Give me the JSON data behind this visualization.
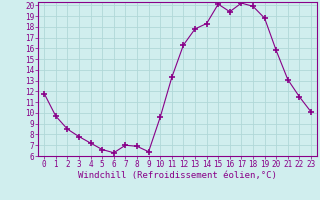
{
  "x": [
    0,
    1,
    2,
    3,
    4,
    5,
    6,
    7,
    8,
    9,
    10,
    11,
    12,
    13,
    14,
    15,
    16,
    17,
    18,
    19,
    20,
    21,
    22,
    23
  ],
  "y": [
    11.8,
    9.7,
    8.5,
    7.8,
    7.2,
    6.6,
    6.3,
    7.0,
    6.9,
    6.4,
    9.6,
    13.3,
    16.3,
    17.8,
    18.3,
    20.1,
    19.4,
    20.2,
    19.9,
    18.8,
    15.8,
    13.1,
    11.5,
    10.1
  ],
  "xlim": [
    -0.5,
    23.5
  ],
  "ylim": [
    6,
    20
  ],
  "yticks": [
    6,
    7,
    8,
    9,
    10,
    11,
    12,
    13,
    14,
    15,
    16,
    17,
    18,
    19,
    20
  ],
  "xticks": [
    0,
    1,
    2,
    3,
    4,
    5,
    6,
    7,
    8,
    9,
    10,
    11,
    12,
    13,
    14,
    15,
    16,
    17,
    18,
    19,
    20,
    21,
    22,
    23
  ],
  "xlabel": "Windchill (Refroidissement éolien,°C)",
  "line_color": "#880088",
  "marker": "+",
  "marker_size": 5,
  "bg_color": "#d0eeee",
  "grid_color": "#b0d8d8",
  "tick_fontsize": 5.5,
  "xlabel_fontsize": 6.5
}
